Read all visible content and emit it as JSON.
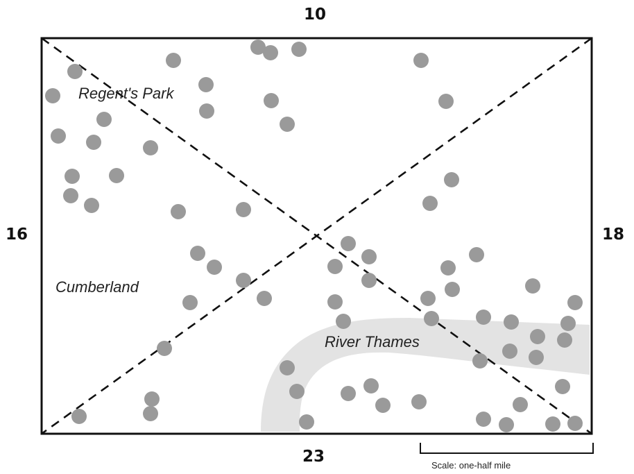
{
  "counts": {
    "top": "10",
    "left": "16",
    "right": "18",
    "bottom": "23"
  },
  "labels": {
    "park": "Regent's Park",
    "district": "Cumberland",
    "river": "River Thames"
  },
  "scale_label": "Scale: one-half mile",
  "colors": {
    "border": "#111111",
    "diagonals": "#111111",
    "dots": "#9a9a9a",
    "river": "#e3e3e3"
  },
  "marker_count": 87
}
